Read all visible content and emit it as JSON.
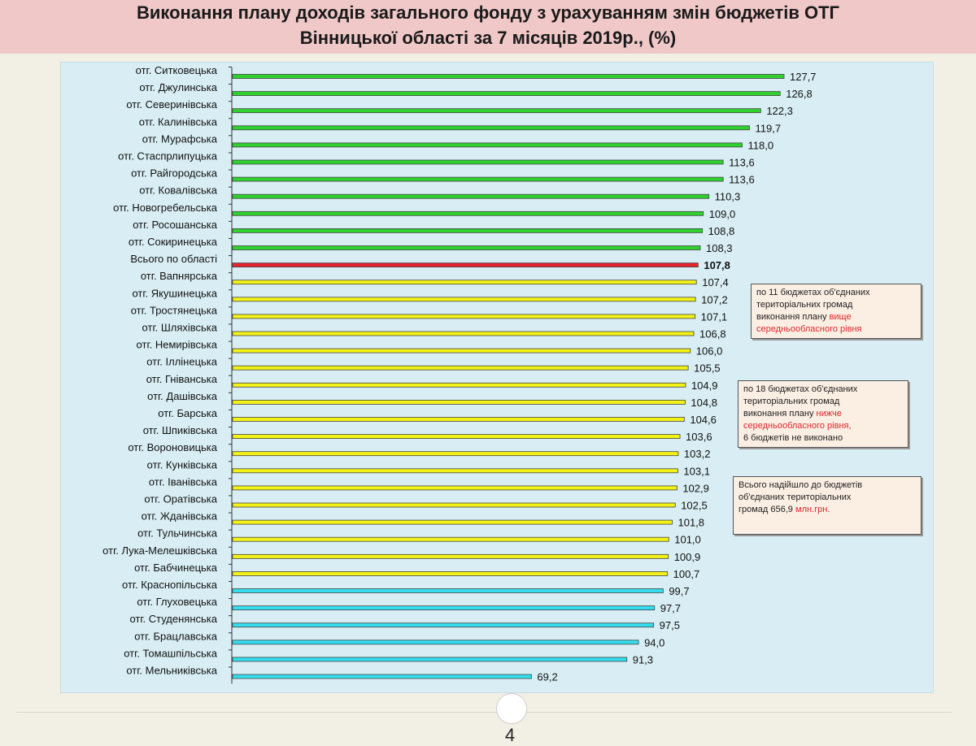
{
  "title": {
    "line1": "Виконання плану доходів загального фонду з урахуванням змін бюджетів ОТГ",
    "line2": "Вінницької області за 7 місяців 2019р., (%)"
  },
  "colors": {
    "above_average": "#2fd12f",
    "region_total": "#e3262e",
    "below_average": "#f2f216",
    "not_fulfilled": "#33ddee",
    "title_band": "#f0c8c8",
    "panel": "#d9eef4",
    "note_highlight": "#e0282e"
  },
  "chart_data": {
    "type": "bar",
    "orientation": "horizontal",
    "categories": [
      "отг. Ситковецька",
      "отг. Джулинська",
      "отг. Северинівська",
      "отг. Калинівська",
      "отг. Мурафська",
      "отг. Стаспрлипуцька",
      "отг. Райгородська",
      "отг. Ковалівська",
      "отг. Новогребельська",
      "отг. Росошанська",
      "отг. Сокиринецька",
      "Всього по області",
      "отг. Вапнярська",
      "отг. Якушинецька",
      "отг. Тростянецька",
      "отг. Шляхівська",
      "отг. Немирівська",
      "отг. Іллінецька",
      "отг. Гніванська",
      "отг. Дашівська",
      "отг. Барська",
      "отг. Шпиківська",
      "отг. Вороновицька",
      "отг. Кунківська",
      "отг. Іванівська",
      "отг. Оратівська",
      "отг. Жданівська",
      "отг. Тульчинська",
      "отг. Лука-Мелешківська",
      "отг. Бабчинецька",
      "отг. Краснопільська",
      "отг. Глуховецька",
      "отг. Студенянська",
      "отг. Брацлавська",
      "отг. Томашпільська",
      "отг. Мельниківська"
    ],
    "values": [
      127.7,
      126.8,
      122.3,
      119.7,
      118.0,
      113.6,
      113.6,
      110.3,
      109.0,
      108.8,
      108.3,
      107.8,
      107.4,
      107.2,
      107.1,
      106.8,
      106.0,
      105.5,
      104.9,
      104.8,
      104.6,
      103.6,
      103.2,
      103.1,
      102.9,
      102.5,
      101.8,
      101.0,
      100.9,
      100.7,
      99.7,
      97.7,
      97.5,
      94.0,
      91.3,
      69.2
    ],
    "value_labels": [
      "127,7",
      "126,8",
      "122,3",
      "119,7",
      "118,0",
      "113,6",
      "113,6",
      "110,3",
      "109,0",
      "108,8",
      "108,3",
      "107,8",
      "107,4",
      "107,2",
      "107,1",
      "106,8",
      "106,0",
      "105,5",
      "104,9",
      "104,8",
      "104,6",
      "103,6",
      "103,2",
      "103,1",
      "102,9",
      "102,5",
      "101,8",
      "101,0",
      "100,9",
      "100,7",
      "99,7",
      "97,7",
      "97,5",
      "94,0",
      "91,3",
      "69,2"
    ],
    "groups": [
      "above_average",
      "above_average",
      "above_average",
      "above_average",
      "above_average",
      "above_average",
      "above_average",
      "above_average",
      "above_average",
      "above_average",
      "above_average",
      "region_total",
      "below_average",
      "below_average",
      "below_average",
      "below_average",
      "below_average",
      "below_average",
      "below_average",
      "below_average",
      "below_average",
      "below_average",
      "below_average",
      "below_average",
      "below_average",
      "below_average",
      "below_average",
      "below_average",
      "below_average",
      "below_average",
      "not_fulfilled",
      "not_fulfilled",
      "not_fulfilled",
      "not_fulfilled",
      "not_fulfilled",
      "not_fulfilled"
    ],
    "xlim": [
      0,
      127.7
    ],
    "grid": false,
    "legend": "none",
    "title": "Виконання плану доходів загального фонду з урахуванням змін бюджетів ОТГ Вінницької області за 7 місяців 2019р., (%)",
    "xlabel": "",
    "ylabel": ""
  },
  "notes": {
    "n1": {
      "line1": "по 11 бюджетах об'єднаних",
      "line2": "територіальних громад",
      "line3": "виконання плану",
      "line3_red": "вище",
      "line4_red": "середньообласного рівня"
    },
    "n2": {
      "line1": "по 18 бюджетах об'єднаних",
      "line2": "територіальних громад",
      "line3": "виконання плану",
      "line3_red": "нижче",
      "line4_red": "середньообласного рівня,",
      "line5": "6 бюджетів не виконано"
    },
    "n3": {
      "line1": "Всього надійшло до бюджетів",
      "line2": "об'єднаних територіальних",
      "line3": "громад 656,9",
      "line3_red": "млн.грн."
    }
  },
  "page_number": "4"
}
